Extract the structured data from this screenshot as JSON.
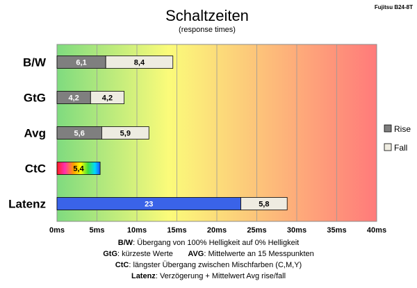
{
  "header": {
    "title": "Schaltzeiten",
    "subtitle": "(response times)",
    "model": "Fujitsu B24-8T"
  },
  "chart_data": {
    "type": "bar",
    "orientation": "horizontal",
    "stacked": true,
    "categories": [
      "B/W",
      "GtG",
      "Avg",
      "CtC",
      "Latenz"
    ],
    "series": [
      {
        "name": "Rise",
        "values": [
          6.1,
          4.2,
          5.6,
          null,
          23
        ]
      },
      {
        "name": "Fall",
        "values": [
          8.4,
          4.2,
          5.9,
          null,
          5.8
        ]
      }
    ],
    "ctc_total": 5.4,
    "value_labels": {
      "rise": [
        "6,1",
        "4,2",
        "5,6",
        "",
        "23"
      ],
      "fall": [
        "8,4",
        "4,2",
        "5,9",
        "",
        "5,8"
      ],
      "ctc": "5,4"
    },
    "xlim": [
      0,
      40
    ],
    "xticks": [
      "0ms",
      "5ms",
      "10ms",
      "15ms",
      "20ms",
      "25ms",
      "30ms",
      "35ms",
      "40ms"
    ],
    "grid": true,
    "legend": {
      "position": "right",
      "entries": [
        "Rise",
        "Fall"
      ]
    },
    "colors": {
      "rise": "#7f7f7f",
      "fall": "#eeece1",
      "latenz_rise": "#3a63e8",
      "gradient_start": "#7fdb7f",
      "gradient_mid": "#fbfb7a",
      "gradient_end": "#ff7a7a"
    }
  },
  "notes": [
    {
      "label": "B/W",
      "text": "Übergang von 100% Helligkeit auf 0% Helligkeit"
    },
    {
      "label": "GtG",
      "text": "kürzeste  Werte",
      "label2": "AVG",
      "text2": "Mittelwerte  an 15 Messpunkten"
    },
    {
      "label": "CtC",
      "text": "längster Übergang  zwischen Mischfarben  (C,M,Y)"
    },
    {
      "label": "Latenz",
      "text": "Verzögerung  + Mittelwert Avg rise/fall"
    }
  ]
}
